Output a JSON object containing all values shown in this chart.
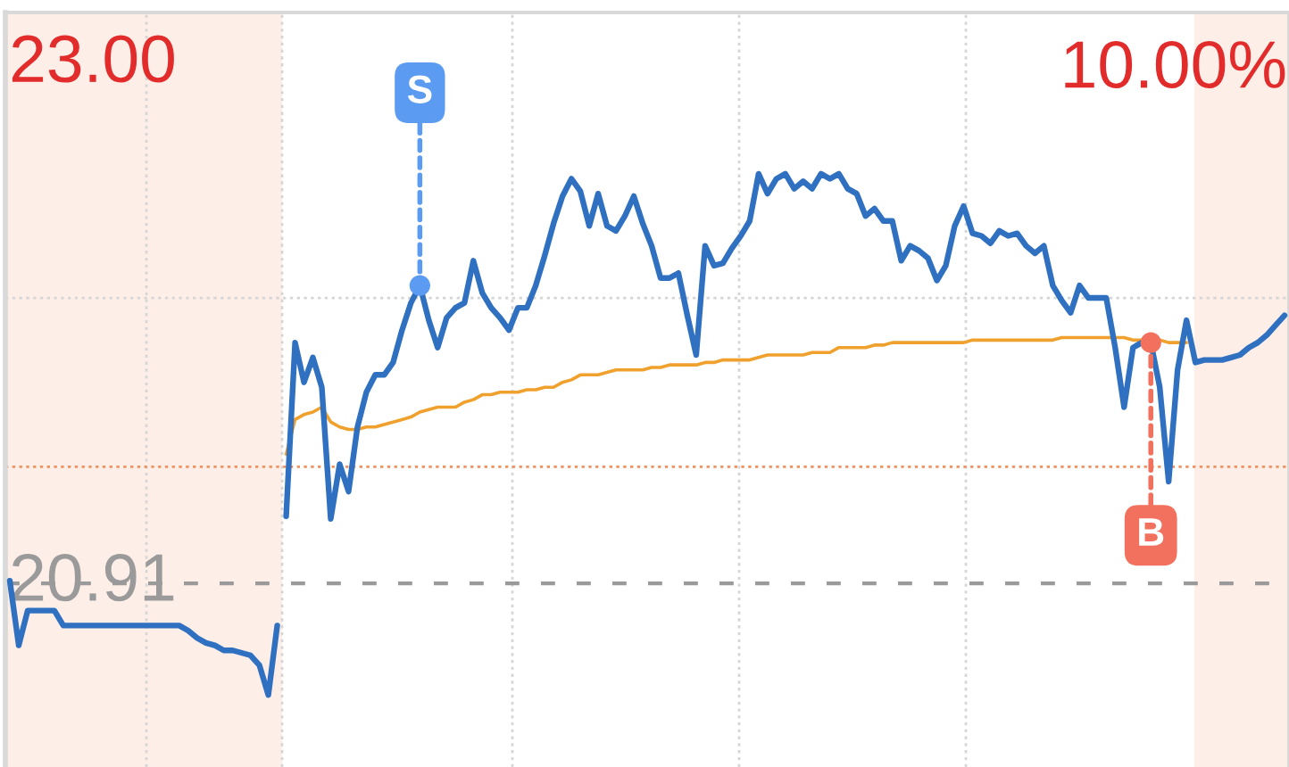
{
  "chart_data": {
    "type": "line",
    "categories": [
      null,
      null,
      null,
      null,
      null,
      null,
      null,
      null,
      null,
      null,
      null,
      null,
      null,
      null,
      null,
      null,
      null,
      null,
      null,
      null,
      null,
      null,
      null,
      null,
      null,
      null,
      null,
      null,
      null,
      null,
      null,
      null,
      null,
      null,
      null,
      null,
      null,
      null,
      null,
      null,
      null,
      null,
      null,
      null,
      null,
      null,
      null,
      null,
      null,
      null,
      null,
      null,
      null,
      null,
      null,
      null,
      null,
      null,
      null,
      null,
      null,
      null,
      null,
      null,
      null,
      null,
      null,
      null,
      null,
      null,
      null,
      null,
      null,
      null,
      null,
      null,
      null,
      null,
      null,
      null,
      null,
      null,
      null,
      null,
      null,
      null,
      null,
      null,
      null,
      null,
      null,
      null,
      null,
      null,
      null,
      null,
      null,
      null,
      null,
      null,
      null,
      null,
      null,
      null,
      null,
      null,
      null,
      null,
      null,
      null,
      null,
      null,
      null,
      null,
      null,
      null,
      null,
      null,
      null,
      null,
      null,
      null,
      null,
      null,
      null,
      null,
      null,
      null,
      null,
      null,
      null,
      null,
      null,
      null,
      null,
      null,
      null,
      null,
      null,
      null,
      null,
      null,
      null,
      null
    ],
    "series": [
      {
        "color": "#f0a02c",
        "values": [
          null,
          null,
          null,
          null,
          null,
          null,
          null,
          null,
          null,
          null,
          null,
          null,
          null,
          null,
          null,
          null,
          null,
          null,
          null,
          null,
          null,
          null,
          null,
          null,
          null,
          null,
          null,
          null,
          null,
          null,
          null,
          21.43,
          21.57,
          21.59,
          21.6,
          21.62,
          21.56,
          21.54,
          21.53,
          21.53,
          21.54,
          21.54,
          21.55,
          21.56,
          21.57,
          21.58,
          21.6,
          21.61,
          21.62,
          21.62,
          21.62,
          21.64,
          21.65,
          21.67,
          21.67,
          21.68,
          21.68,
          21.68,
          21.69,
          21.69,
          21.7,
          21.7,
          21.72,
          21.73,
          21.75,
          21.75,
          21.75,
          21.76,
          21.77,
          21.77,
          21.77,
          21.77,
          21.78,
          21.78,
          21.79,
          21.79,
          21.79,
          21.79,
          21.8,
          21.8,
          21.81,
          21.81,
          21.81,
          21.81,
          21.82,
          21.83,
          21.83,
          21.83,
          21.83,
          21.83,
          21.84,
          21.84,
          21.84,
          21.86,
          21.86,
          21.86,
          21.86,
          21.87,
          21.87,
          21.88,
          21.88,
          21.88,
          21.88,
          21.88,
          21.88,
          21.88,
          21.88,
          21.88,
          21.89,
          21.89,
          21.89,
          21.89,
          21.89,
          21.89,
          21.89,
          21.89,
          21.89,
          21.89,
          21.9,
          21.9,
          21.9,
          21.9,
          21.9,
          21.9,
          21.9,
          21.9,
          21.89,
          21.89,
          21.89,
          21.89,
          21.88,
          21.88,
          21.88,
          null,
          null,
          null,
          null,
          null,
          null,
          null,
          null,
          null,
          null,
          null
        ]
      },
      {
        "color": "#3070c0",
        "values": [
          20.92,
          20.66,
          20.8,
          20.8,
          20.8,
          20.8,
          20.74,
          20.74,
          20.74,
          20.74,
          20.74,
          20.74,
          20.74,
          20.74,
          20.74,
          20.74,
          20.74,
          20.74,
          20.74,
          20.74,
          20.72,
          20.69,
          20.67,
          20.66,
          20.64,
          20.64,
          20.63,
          20.62,
          20.58,
          20.46,
          20.74,
          null,
          null,
          null,
          null,
          null,
          null,
          null,
          null,
          null,
          null,
          null,
          null,
          null,
          null,
          null,
          null,
          null,
          null,
          null,
          null,
          null,
          null,
          null,
          null,
          null,
          null,
          null,
          null,
          null,
          null,
          null,
          null,
          null,
          null,
          null,
          null,
          null,
          null,
          null,
          null,
          null,
          null,
          null,
          null,
          null,
          null,
          null,
          null,
          null,
          null,
          null,
          null,
          null,
          null,
          null,
          null,
          null,
          null,
          null,
          null,
          null,
          null,
          null,
          null,
          null,
          null,
          null,
          null,
          null,
          null,
          null,
          null,
          null,
          null,
          null,
          null,
          null,
          null,
          null,
          null,
          null,
          null,
          null,
          null,
          null,
          null,
          null,
          null,
          null,
          null,
          null,
          null,
          null,
          null,
          null,
          null,
          null,
          null,
          null,
          null,
          null,
          null,
          null,
          null,
          null,
          null,
          null,
          null,
          null,
          null,
          null,
          null,
          null
        ]
      },
      {
        "color": "#3070c0",
        "values": [
          null,
          null,
          null,
          null,
          null,
          null,
          null,
          null,
          null,
          null,
          null,
          null,
          null,
          null,
          null,
          null,
          null,
          null,
          null,
          null,
          null,
          null,
          null,
          null,
          null,
          null,
          null,
          null,
          null,
          null,
          null,
          21.18,
          21.88,
          21.72,
          21.82,
          21.7,
          21.17,
          21.39,
          21.28,
          21.54,
          21.68,
          21.75,
          21.75,
          21.8,
          21.93,
          22.04,
          22.11,
          21.97,
          21.86,
          21.98,
          22.02,
          22.04,
          22.21,
          22.08,
          22.02,
          21.98,
          21.93,
          22.02,
          22.02,
          22.11,
          22.23,
          22.36,
          22.47,
          22.54,
          22.49,
          22.35,
          22.48,
          22.35,
          22.33,
          22.39,
          22.47,
          22.36,
          22.27,
          22.14,
          22.14,
          22.16,
          21.99,
          21.83,
          22.27,
          22.19,
          22.2,
          22.26,
          22.31,
          22.37,
          22.56,
          22.48,
          22.54,
          22.56,
          22.5,
          22.53,
          22.5,
          22.56,
          22.54,
          22.56,
          22.5,
          22.48,
          22.39,
          22.42,
          22.37,
          22.37,
          22.21,
          22.27,
          22.25,
          22.22,
          22.13,
          22.19,
          22.35,
          22.43,
          22.32,
          22.31,
          22.28,
          22.33,
          22.31,
          22.32,
          22.27,
          22.24,
          22.27,
          22.11,
          22.05,
          22.0,
          22.11,
          22.06,
          22.06,
          22.06,
          21.86,
          21.62,
          21.86,
          21.88,
          21.88,
          21.7,
          21.32,
          21.77,
          21.97,
          21.8,
          21.81,
          21.81,
          21.81,
          21.82,
          21.83,
          21.86,
          21.88,
          21.91,
          21.95,
          21.99
        ]
      },
      {
        "type": "scatter",
        "name": "S",
        "color": "#5b9cf2",
        "values": [
          null,
          null,
          null,
          null,
          null,
          null,
          null,
          null,
          null,
          null,
          null,
          null,
          null,
          null,
          null,
          null,
          null,
          null,
          null,
          null,
          null,
          null,
          null,
          null,
          null,
          null,
          null,
          null,
          null,
          null,
          null,
          null,
          null,
          null,
          null,
          null,
          null,
          null,
          null,
          null,
          null,
          null,
          null,
          null,
          null,
          null,
          22.11,
          null,
          null,
          null,
          null,
          null,
          null,
          null,
          null,
          null,
          null,
          null,
          null,
          null,
          null,
          null,
          null,
          null,
          null,
          null,
          null,
          null,
          null,
          null,
          null,
          null,
          null,
          null,
          null,
          null,
          null,
          null,
          null,
          null,
          null,
          null,
          null,
          null,
          null,
          null,
          null,
          null,
          null,
          null,
          null,
          null,
          null,
          null,
          null,
          null,
          null,
          null,
          null,
          null,
          null,
          null,
          null,
          null,
          null,
          null,
          null,
          null,
          null,
          null,
          null,
          null,
          null,
          null,
          null,
          null,
          null,
          null,
          null,
          null,
          null,
          null,
          null,
          null,
          null,
          null,
          null,
          null,
          null,
          null,
          null,
          null,
          null,
          null,
          null,
          null,
          null,
          null,
          null,
          null,
          null,
          null,
          null,
          null
        ]
      },
      {
        "type": "scatter",
        "name": "B",
        "color": "#f2705e",
        "values": [
          null,
          null,
          null,
          null,
          null,
          null,
          null,
          null,
          null,
          null,
          null,
          null,
          null,
          null,
          null,
          null,
          null,
          null,
          null,
          null,
          null,
          null,
          null,
          null,
          null,
          null,
          null,
          null,
          null,
          null,
          null,
          null,
          null,
          null,
          null,
          null,
          null,
          null,
          null,
          null,
          null,
          null,
          null,
          null,
          null,
          null,
          null,
          null,
          null,
          null,
          null,
          null,
          null,
          null,
          null,
          null,
          null,
          null,
          null,
          null,
          null,
          null,
          null,
          null,
          null,
          null,
          null,
          null,
          null,
          null,
          null,
          null,
          null,
          null,
          null,
          null,
          null,
          null,
          null,
          null,
          null,
          null,
          null,
          null,
          null,
          null,
          null,
          null,
          null,
          null,
          null,
          null,
          null,
          null,
          null,
          null,
          null,
          null,
          null,
          null,
          null,
          null,
          null,
          null,
          null,
          null,
          null,
          null,
          null,
          null,
          null,
          null,
          null,
          null,
          null,
          null,
          null,
          null,
          null,
          null,
          null,
          null,
          null,
          null,
          null,
          null,
          null,
          null,
          21.88,
          null,
          null,
          null,
          null,
          null,
          null,
          null,
          null,
          null,
          null,
          null,
          null,
          null,
          null,
          null
        ]
      }
    ],
    "ylim": [
      20.17,
      23.21
    ],
    "yticks": [
      {
        "value": 23.0,
        "label": "23.00"
      },
      {
        "value": 20.91,
        "label": "20.91"
      }
    ],
    "tick_labels": "y",
    "annotations": [
      "10.00%"
    ],
    "ref_lines": [
      {
        "axis": "y",
        "value": 22.06,
        "color": "#d6d6d6",
        "line_style": "dotted"
      },
      {
        "axis": "y",
        "value": 21.38,
        "color": "#f0915f",
        "line_style": "dotted"
      },
      {
        "axis": "y",
        "value": 20.91,
        "color": "#9a9a9a",
        "line_style": "dashed"
      }
    ]
  }
}
